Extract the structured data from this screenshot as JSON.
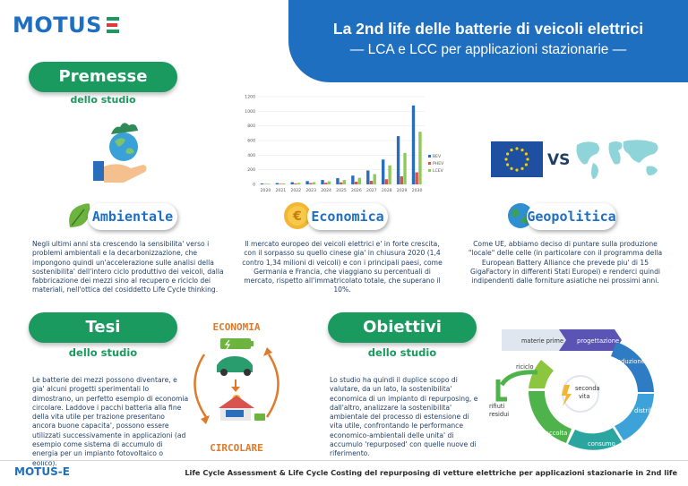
{
  "header": {
    "logo": "MOTUS-E",
    "title": "La 2nd life delle batterie di veicoli elettrici",
    "subtitle": "— LCA e LCC per applicazioni stazionarie —"
  },
  "premesse": {
    "title": "Premesse",
    "subtitle": "dello studio"
  },
  "ambientale": {
    "label": "Ambientale",
    "text": "Negli ultimi anni sta crescendo la sensibilita' verso i problemi ambientali e la decarbonizzazione, che impongono quindi un'accelerazione sulle analisi della sostenibilita' dell'intero ciclo produttivo dei veicoli, dalla fabbricazione dei mezzi sino al recupero e riciclo dei materiali, nell'ottica del cosiddetto Life Cycle thinking."
  },
  "economica": {
    "label": "Economica",
    "text": "Il mercato europeo dei veicoli elettrici e' in forte crescita, con il sorpasso su quello cinese gia' in chiusura 2020 (1,4 contro 1,34 milioni di veicoli) e con i principali paesi, come Germania e Francia, che viaggiano su percentuali di mercato, rispetto all'immatricolato totale, che superano il 10%."
  },
  "geopolitica": {
    "label": "Geopolitica",
    "vs": "VS",
    "text": "Come UE, abbiamo deciso di puntare sulla produzione \"locale\" delle celle (in particolare con il programma della European Battery Alliance che prevede piu' di 15 GigaFactory in differenti Stati Europei) e renderci quindi indipendenti dalle forniture asiatiche nei prossimi anni."
  },
  "tesi": {
    "title": "Tesi",
    "subtitle": "dello studio",
    "text": "Le batterie dei mezzi possono diventare, e gia' alcuni progetti sperimentali lo dimostrano, un perfetto esempio di economia circolare. Laddove i pacchi batteria alla fine della vita utile per trazione presentano ancora buone capacita', possono essere utilizzati successivamente in applicazioni (ad esempio come sistema di accumulo di energia per un impianto fotovoltaico o eolico).",
    "econ_top": "ECONOMIA",
    "econ_bottom": "CIRCOLARE"
  },
  "obiettivi": {
    "title": "Obiettivi",
    "subtitle": "dello studio",
    "text": "Lo studio ha quindi il duplice scopo di valutare, da un lato, la sostenibilita' economica di un impianto di repurposing, e dall'altro, analizzare la sostenibilita' ambientale del processo di estensione di vita utile, confrontando le performance economico-ambientali delle unita' di accumulo 'repurposed' con quelle nuove di riferimento."
  },
  "cycle": {
    "materie_prime": "materie prime",
    "progettazione": "progettazione",
    "produzione": "produzione",
    "distribuzione": "distribuzione",
    "consumo": "consumo",
    "raccolta": "raccolta",
    "riciclo": "riciclo",
    "rifiuti_residui": [
      "rifiuti",
      "residui"
    ],
    "seconda_vita": [
      "seconda",
      "vita"
    ]
  },
  "chart_data": {
    "type": "bar",
    "categories": [
      "2020",
      "2021",
      "2022",
      "2023",
      "2024",
      "2025",
      "2026",
      "2027",
      "2028",
      "2029",
      "2030"
    ],
    "ylim": [
      0,
      1200
    ],
    "yticks": [
      0,
      200,
      400,
      600,
      800,
      1000,
      1200
    ],
    "series": [
      {
        "name": "BEV",
        "color": "#2a6ebb",
        "values": [
          12,
          18,
          30,
          45,
          60,
          85,
          120,
          190,
          340,
          660,
          1080
        ]
      },
      {
        "name": "PHEV",
        "color": "#d9534f",
        "values": [
          5,
          8,
          12,
          18,
          22,
          28,
          36,
          48,
          70,
          110,
          165
        ]
      },
      {
        "name": "LCEV",
        "color": "#8fc95a",
        "values": [
          8,
          12,
          20,
          30,
          42,
          60,
          90,
          140,
          260,
          430,
          720
        ]
      }
    ],
    "legend_position": "right",
    "grid": true
  },
  "footer": {
    "logo": "MOTUS-E",
    "caption": "Life Cycle Assessment & Life Cycle Costing del repurposing di vetture elettriche per applicazioni stazionarie in 2nd life"
  },
  "colors": {
    "brand_blue": "#1f6fc0",
    "brand_green": "#1a9a5e",
    "accent_orange": "#e07a2b"
  }
}
